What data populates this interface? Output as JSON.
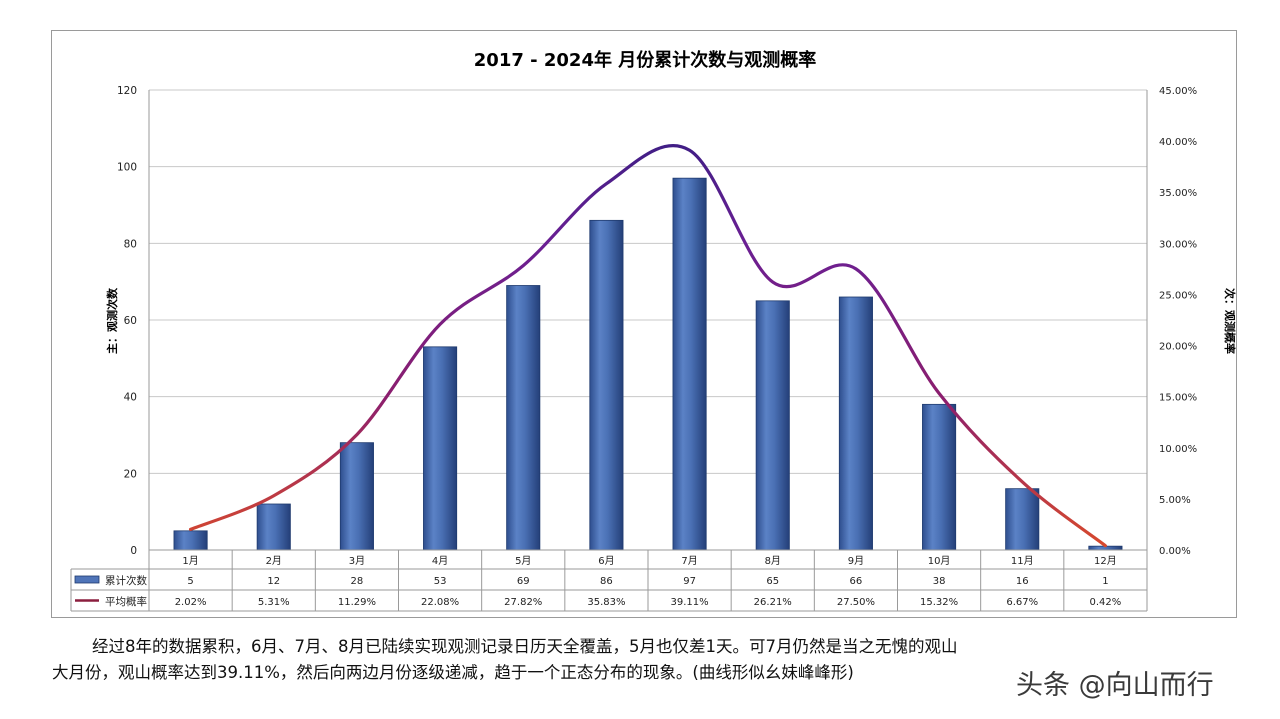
{
  "chart_data": {
    "type": "bar",
    "title": "2017 - 2024年 月份累计次数与观测概率",
    "categories": [
      "1月",
      "2月",
      "3月",
      "4月",
      "5月",
      "6月",
      "7月",
      "8月",
      "9月",
      "10月",
      "11月",
      "12月"
    ],
    "series": [
      {
        "name": "累计次数",
        "type": "bar",
        "axis": "primary",
        "color": "#4F74B8",
        "values": [
          5,
          12,
          28,
          53,
          69,
          86,
          97,
          65,
          66,
          38,
          16,
          1
        ]
      },
      {
        "name": "平均概率",
        "type": "line",
        "axis": "secondary",
        "smooth": true,
        "values": [
          2.02,
          5.31,
          11.29,
          22.08,
          27.82,
          35.83,
          39.11,
          26.21,
          27.5,
          15.32,
          6.67,
          0.42
        ],
        "labels": [
          "2.02%",
          "5.31%",
          "11.29%",
          "22.08%",
          "27.82%",
          "35.83%",
          "39.11%",
          "26.21%",
          "27.50%",
          "15.32%",
          "6.67%",
          "0.42%"
        ]
      }
    ],
    "ylabel": "主：观测次数",
    "y2label": "次：观测概率",
    "ylim": [
      0,
      120
    ],
    "y_ticks": [
      0,
      20,
      40,
      60,
      80,
      100,
      120
    ],
    "y2lim": [
      0,
      45
    ],
    "y2_ticks": [
      "0.00%",
      "5.00%",
      "10.00%",
      "15.00%",
      "20.00%",
      "25.00%",
      "30.00%",
      "35.00%",
      "40.00%",
      "45.00%"
    ],
    "grid": true,
    "legend": "data-table",
    "line_gradient": [
      "#D94A2B",
      "#8B1E6E",
      "#6A1F93",
      "#2A1E7E"
    ]
  },
  "caption": {
    "line1": "经过8年的数据累积，6月、7月、8月已陆续实现观测记录日历天全覆盖，5月也仅差1天。可7月仍然是当之无愧的观山",
    "line2": "大月份，观山概率达到39.11%，然后向两边月份逐级递减，趋于一个正态分布的现象。(曲线形似幺妹峰峰形)"
  },
  "watermark": "头条 @向山而行"
}
